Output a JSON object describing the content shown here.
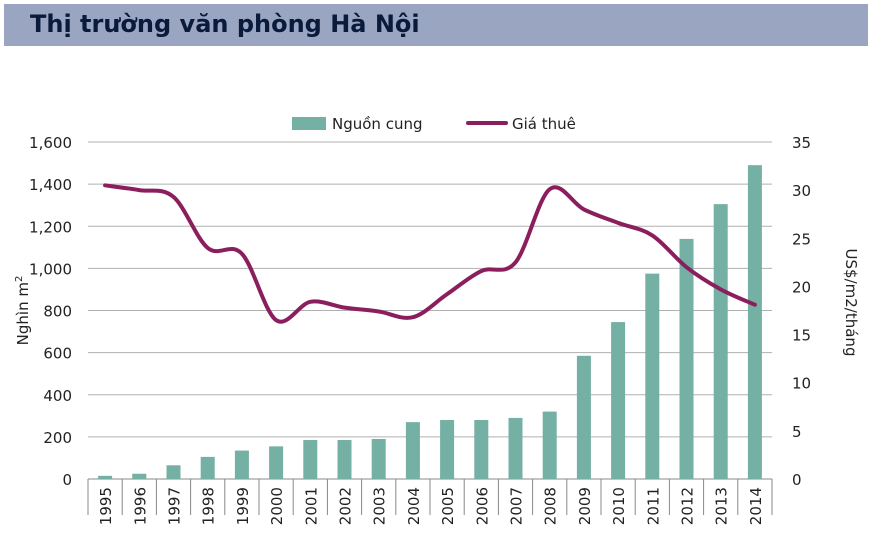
{
  "header": {
    "title": "Thị trường văn phòng Hà Nội"
  },
  "colors": {
    "bar": "#74b0a4",
    "line": "#8b1f5e",
    "title_bg": "#9aa5c2",
    "grid": "#b0b0b0"
  },
  "chart_data": {
    "type": "bar",
    "title": "",
    "categories": [
      "1995",
      "1996",
      "1997",
      "1998",
      "1999",
      "2000",
      "2001",
      "2002",
      "2003",
      "2004",
      "2005",
      "2006",
      "2007",
      "2008",
      "2009",
      "2010",
      "2011",
      "2012",
      "2013",
      "2014"
    ],
    "ylabel": "Nghìn m",
    "ylabel_sup": "2",
    "y2label": "US$/m2/tháng",
    "ylim": [
      0,
      1600
    ],
    "y2lim": [
      0,
      35
    ],
    "yticks": [
      "0",
      "200",
      "400",
      "600",
      "800",
      "1,000",
      "1,200",
      "1,400",
      "1,600"
    ],
    "y2ticks": [
      "0",
      "5",
      "10",
      "15",
      "20",
      "25",
      "30",
      "35"
    ],
    "grid": true,
    "legend": "top",
    "series": [
      {
        "name": "Nguồn cung",
        "type": "bar",
        "axis": "left",
        "values": [
          15,
          25,
          65,
          105,
          135,
          155,
          185,
          185,
          190,
          270,
          280,
          280,
          290,
          320,
          585,
          745,
          975,
          1140,
          1305,
          1490
        ]
      },
      {
        "name": "Giá thuê",
        "type": "line",
        "axis": "right",
        "values": [
          30.5,
          30.0,
          29.3,
          24.0,
          23.4,
          16.5,
          18.4,
          17.8,
          17.4,
          16.8,
          19.2,
          21.6,
          22.5,
          30.1,
          28.0,
          26.6,
          25.3,
          22.0,
          19.7,
          18.1
        ]
      }
    ]
  }
}
